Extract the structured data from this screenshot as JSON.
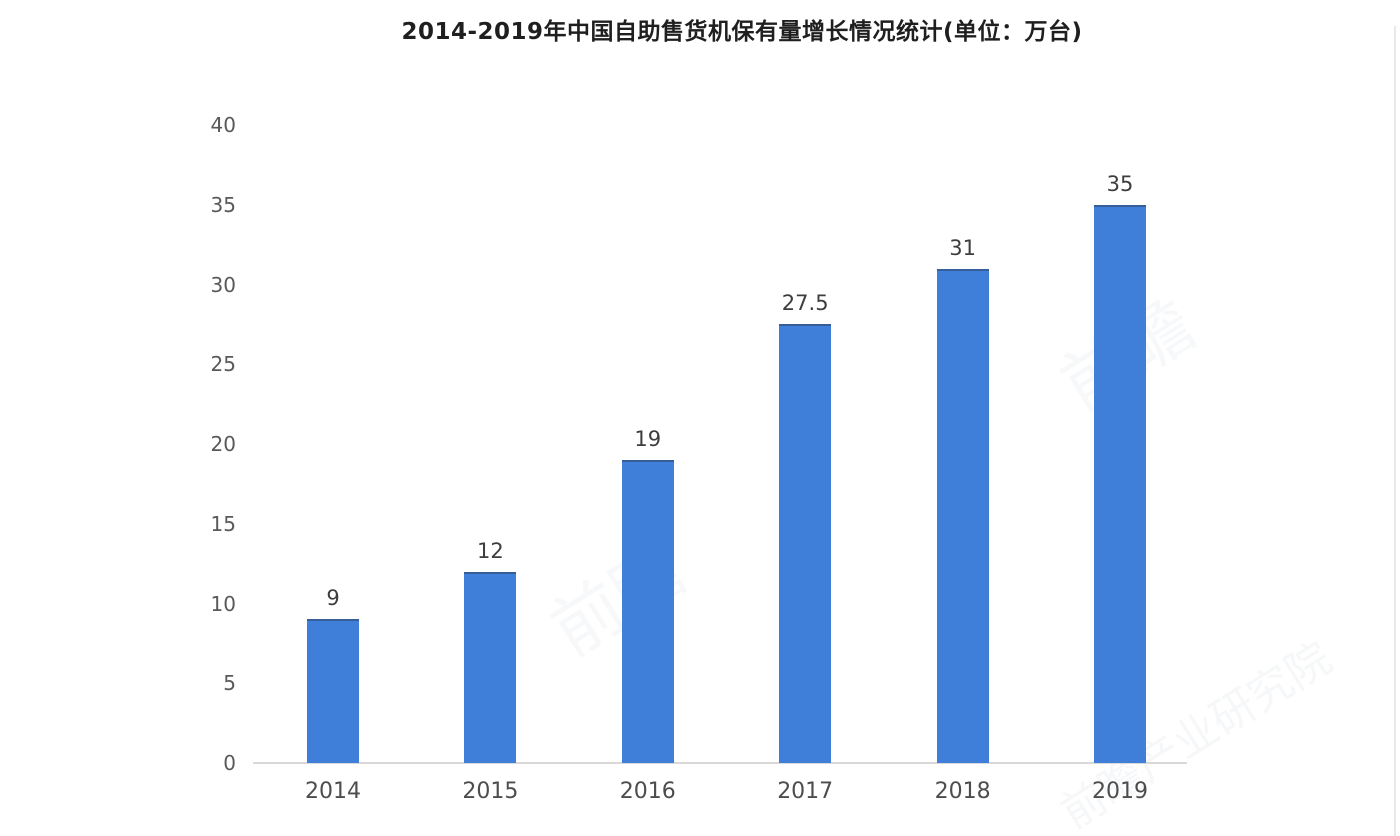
{
  "chart_data": {
    "type": "bar",
    "title": "2014-2019年中国自助售货机保有量增长情况统计(单位：万台)",
    "categories": [
      "2014",
      "2015",
      "2016",
      "2017",
      "2018",
      "2019"
    ],
    "values": [
      9,
      12,
      19,
      27.5,
      31,
      35
    ],
    "value_labels": [
      "9",
      "12",
      "19",
      "27.5",
      "31",
      "35"
    ],
    "xlabel": "",
    "ylabel": "",
    "ylim": [
      0,
      40
    ],
    "yticks": [
      0,
      5,
      10,
      15,
      20,
      25,
      30,
      35,
      40
    ],
    "grid": false,
    "legend": "none",
    "unit": "万台",
    "bar_color": "#3F7FD9",
    "axis_line_color": "#d9d9d9",
    "title_color": "#1f1f1f",
    "tick_label_color": "#595959"
  },
  "watermark": {
    "text": "前瞻",
    "text_long": "前瞻产业研究院"
  }
}
